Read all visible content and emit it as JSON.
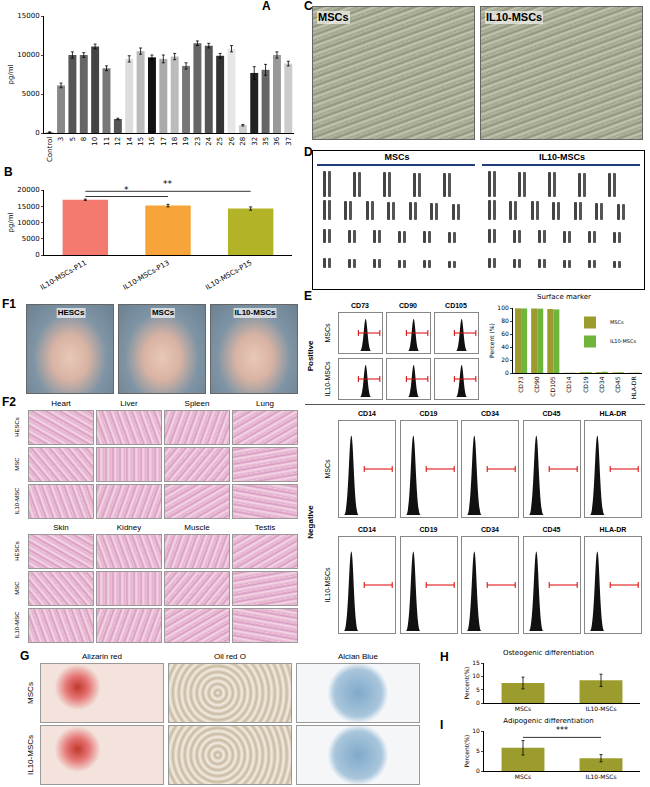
{
  "panel_labels": [
    "A",
    "B",
    "C",
    "D",
    "E",
    "F1",
    "F2",
    "G",
    "H",
    "I"
  ],
  "chart_data": [
    {
      "type": "bar",
      "ylabel": "pg/ml",
      "categories": [
        "Control",
        "3",
        "5",
        "8",
        "10",
        "11",
        "12",
        "14",
        "15",
        "16",
        "17",
        "18",
        "19",
        "23",
        "24",
        "25",
        "26",
        "28",
        "32",
        "35",
        "36",
        "37"
      ],
      "values": [
        100,
        6100,
        10000,
        10000,
        11100,
        8300,
        1800,
        9500,
        10500,
        9700,
        9500,
        9800,
        8600,
        11500,
        11200,
        9900,
        10800,
        1000,
        7700,
        8100,
        10000,
        8900
      ],
      "error": [
        50,
        300,
        400,
        300,
        300,
        300,
        100,
        400,
        400,
        300,
        500,
        400,
        400,
        300,
        300,
        300,
        400,
        100,
        800,
        700,
        400,
        300
      ],
      "colors": [
        "#999999",
        "#888888",
        "#555555",
        "#666666",
        "#444444",
        "#777777",
        "#555555",
        "#dddddd",
        "#bbbbbb",
        "#111111",
        "#aaaaaa",
        "#bbbbbb",
        "#777777",
        "#666666",
        "#555555",
        "#333333",
        "#e6e6e6",
        "#cccccc",
        "#222222",
        "#666666",
        "#999999",
        "#cccccc"
      ],
      "ylim": [
        0,
        15000
      ],
      "yticks": [
        0,
        5000,
        10000,
        15000
      ]
    },
    {
      "type": "bar",
      "ylabel": "pg/ml",
      "categories": [
        "IL10-MSCs-P11",
        "IL10-MSCs-P13",
        "IL10-MSCs-P15"
      ],
      "values": [
        17000,
        15200,
        14300
      ],
      "error": [
        200,
        400,
        500
      ],
      "colors": [
        "#f47a6f",
        "#f7a53b",
        "#b3b327"
      ],
      "ylim": [
        0,
        20000
      ],
      "yticks": [
        0,
        5000,
        10000,
        15000,
        20000
      ],
      "annotations": [
        {
          "text": "*",
          "from": 0,
          "to": 1
        },
        {
          "text": "**",
          "from": 0,
          "to": 2
        }
      ]
    },
    {
      "type": "bar",
      "title": "Surface marker",
      "ylabel": "Percent (%)",
      "categories": [
        "CD73",
        "CD90",
        "CD105",
        "CD14",
        "CD19",
        "CD34",
        "CD45",
        "HLA-DR"
      ],
      "series": [
        {
          "name": "MSCs",
          "color": "#9c9c2e",
          "values": [
            99.5,
            99.2,
            98.5,
            0.4,
            1.1,
            1.3,
            0.9,
            0.3
          ]
        },
        {
          "name": "IL10-MSCs",
          "color": "#6fb53c",
          "values": [
            99.3,
            99.0,
            97.8,
            0.5,
            1.4,
            1.9,
            1.2,
            0.6
          ]
        }
      ],
      "ylim": [
        0,
        100
      ],
      "yticks": [
        0,
        20,
        40,
        60,
        80,
        100
      ],
      "legend": "top-right"
    },
    {
      "type": "bar",
      "title": "Osteogenic differentiation",
      "ylabel": "Percent(%)",
      "categories": [
        "MSCs",
        "IL10-MSCs"
      ],
      "values": [
        7.5,
        8.5
      ],
      "error": [
        2.2,
        2.3
      ],
      "color": "#9c9c2e",
      "ylim": [
        0,
        15
      ],
      "yticks": [
        0,
        5,
        10,
        15
      ]
    },
    {
      "type": "bar",
      "title": "Adipogenic differentiation",
      "ylabel": "Percent(%)",
      "categories": [
        "MSCs",
        "IL10-MSCs"
      ],
      "values": [
        5.8,
        3.2
      ],
      "error": [
        1.8,
        0.9
      ],
      "color": "#9c9c2e",
      "ylim": [
        0,
        10
      ],
      "yticks": [
        0,
        5,
        10
      ],
      "annotations": [
        {
          "text": "***",
          "from": 0,
          "to": 1
        }
      ]
    }
  ],
  "images": {
    "C": {
      "labels": [
        "MSCs",
        "IL10-MSCs"
      ]
    },
    "D": {
      "labels": [
        "MSCs",
        "IL10-MSCs"
      ]
    },
    "E": {
      "groups": [
        "Positive",
        "Negative"
      ],
      "rows": [
        "MSCs",
        "IL10-MSCs"
      ],
      "positive": [
        "CD73",
        "CD90",
        "CD105"
      ],
      "negative": [
        "CD14",
        "CD19",
        "CD34",
        "CD45",
        "HLA-DR"
      ]
    },
    "F1": {
      "labels": [
        "HESCs",
        "MSCs",
        "IL10-MSCs"
      ]
    },
    "F2": {
      "rows": [
        "HESCs",
        "MSC",
        "IL10-MSC"
      ],
      "tissues": [
        [
          "Heart",
          "Liver",
          "Spleen",
          "Lung"
        ],
        [
          "Skin",
          "Kidney",
          "Muscle",
          "Testis"
        ]
      ]
    },
    "G": {
      "rows": [
        "MSCs",
        "IL10-MSCs"
      ],
      "columns": [
        "Alizarin red",
        "Oil red O",
        "Alcian Blue"
      ]
    }
  }
}
